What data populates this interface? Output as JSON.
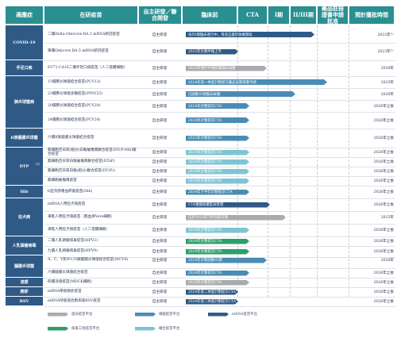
{
  "headers": {
    "indication": "適應症",
    "candidate": "在研疫苗",
    "rd": "自主研發／聯合開發",
    "preclinical": "臨床前",
    "cta": "CTA",
    "phase1": "I期",
    "phase23": "II/III期",
    "approval": "藥品註冊證書申請批准",
    "milestone": "預計獲批時間"
  },
  "indications": [
    "COVID-19",
    "手足口病",
    "肺炎球菌病",
    "B族腦膜炎球菌",
    "DTP",
    "Hib",
    "狂犬病",
    "人乳頭瘤病毒",
    "腦膜炎球菌",
    "流感",
    "皰疹",
    "RSV"
  ],
  "dtp_sup": "(1)",
  "rows": [
    {
      "candidate": "二價Delta-Omicron BA.5 mRNA新冠疫苗",
      "rd": "自主研發",
      "bar": "海外I期臨床進行中，目前正處於收尾階段",
      "milestone": "2023年⁽¹⁾"
    },
    {
      "candidate": "單價Omicron BA.5 mRNA新冠疫苗",
      "rd": "自主研發",
      "bar": "2023年計劃申報上市",
      "milestone": "2023年⁽¹⁾"
    },
    {
      "candidate": "EV71-CA16二價手足口病疫苗（人二倍體細胞）",
      "rd": "自主研發",
      "bar": "2023年預計申報新藥臨床試驗",
      "milestone": "2026年"
    },
    {
      "candidate": "13價肺炎球菌結合疫苗(PCV13)",
      "rd": "自主研發",
      "bar": "2024年第一季度計劃提交藥品註冊證書申請",
      "milestone": "2025年"
    },
    {
      "candidate": "23價肺炎球菌多糖疫苗(PPSV23)",
      "rd": "自主研發",
      "bar": "已啟動III期臨床試驗",
      "milestone": "2026年"
    },
    {
      "candidate": "20價肺炎球菌結合疫苗(PCV20)",
      "rd": "自主研發",
      "bar": "2024年計劃提交CTA",
      "milestone": "2026年之後"
    },
    {
      "candidate": "24價肺炎球菌結合疫苗(PCV24)",
      "rd": "自主研發",
      "bar": "2024年計劃提交CTA",
      "milestone": "2026年之後"
    },
    {
      "candidate": "六價B族腦膜炎球菌結合疫苗",
      "rd": "自主研發",
      "bar": "2025年計劃提交CTA",
      "milestone": "2026年之後"
    },
    {
      "candidate": "無細胞百日咳(組分)白喉破傷風聯合疫苗(DTcP-Hib)聯合疫苗",
      "rd": "自主研發",
      "bar": "2024年計劃提交CTA",
      "milestone": "2026年之後"
    },
    {
      "candidate": "無細胞百日咳白喉破傷風聯合疫苗(DTaP)",
      "rd": "自主研發",
      "bar": "2024年計劃提交CTA",
      "milestone": "2026年之後"
    },
    {
      "candidate": "無細胞百日咳白喉(組分)聯合疫苗(DT(P))",
      "rd": "自主研發",
      "bar": "2024年計劃提交CTA",
      "milestone": "2026年之後"
    },
    {
      "candidate": "無細胞破傷風疫苗",
      "rd": "自主研發",
      "bar": "2024年計劃提交CTA",
      "milestone": "2026年之後"
    },
    {
      "candidate": "b型流感嗜血桿菌疫苗(Hib)",
      "rd": "自主研發",
      "bar": "2024年下半年計劃提交CTA",
      "milestone": "2026年之後"
    },
    {
      "candidate": "mRNA人用狂犬病疫苗",
      "rd": "自主研發",
      "bar": "CTA獲國家藥監局受理",
      "milestone": "2026年之後"
    },
    {
      "candidate": "凍乾人用狂犬病疫苗（無血清Vero細胞）",
      "rd": "自主研發",
      "bar": "已於2023年7月完成III期",
      "milestone": "2025年"
    },
    {
      "candidate": "凍乾人用狂犬病疫苗（人二倍體細胞）",
      "rd": "自主研發",
      "bar": "2024年計劃提交CTA",
      "milestone": "2026年之後"
    },
    {
      "candidate": "二價人乳頭瘤病毒疫苗(HPV2)",
      "rd": "自主研發",
      "bar": "2024年計劃提交CTA",
      "milestone": "2026年之後"
    },
    {
      "candidate": "九價人乳頭瘤病毒疫苗(HPV9)",
      "rd": "自主研發",
      "bar": "2024年計劃提交CTA",
      "milestone": "2026年之後"
    },
    {
      "candidate": "A、C、Y及W135群腦膜炎球菌結合疫苗(MCV4)",
      "rd": "自主研發",
      "bar": "2024年計劃啟動III期",
      "milestone": "2026年"
    },
    {
      "candidate": "六價腦膜炎球菌結合疫苗",
      "rd": "自主研發",
      "bar": "2024年計劃提交CTA",
      "milestone": "2026年之後"
    },
    {
      "candidate": "四價流感疫苗(MDCK細胞)",
      "rd": "自主研發",
      "bar": "2024年計劃提交CTA",
      "milestone": "2026年之後"
    },
    {
      "candidate": "mRNA帶狀皰疹疫苗",
      "rd": "自主研發",
      "bar": "2024年第二季度計劃提交CTA",
      "milestone": "2026年之後"
    },
    {
      "candidate": "mRNA呼吸道合胞病毒RSV疫苗",
      "rd": "自主研發",
      "bar": "2024年第二季度計劃提交CTA",
      "milestone": "2026年之後"
    }
  ],
  "legend": {
    "protein": "蛋白疫苗平台",
    "bacterial": "細菌疫苗平台",
    "mrna": "mRNA疫苗平台",
    "viral": "病毒工程疫苗平台",
    "combination": "聯合疫苗平台"
  },
  "colors": {
    "header": "#2a8f90",
    "indication": "#2f5a86",
    "mrna": "#2f5a86",
    "bacterial": "#4a8cb5",
    "combination": "#7fc4d4",
    "protein": "#a9abae",
    "viral": "#2e9e6b"
  }
}
